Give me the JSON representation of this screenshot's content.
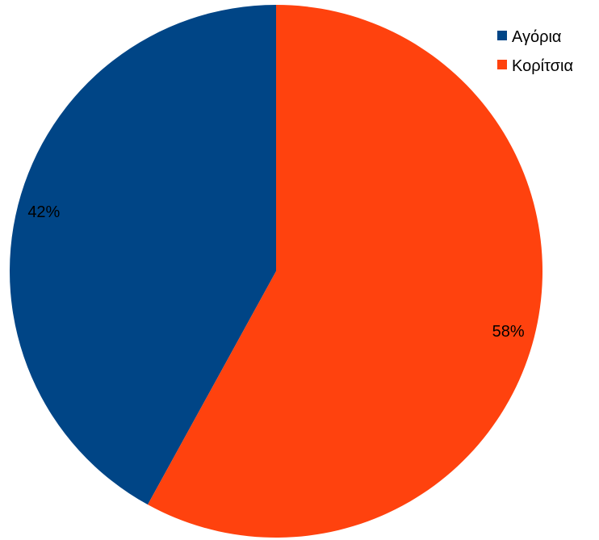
{
  "chart_data": {
    "type": "pie",
    "title": "",
    "categories": [
      "Αγόρια",
      "Κορίτσια"
    ],
    "values": [
      42,
      58
    ],
    "labels": [
      "42%",
      "58%"
    ],
    "colors": [
      "#004586",
      "#ff420e"
    ],
    "start": "12 o'clock",
    "direction": "counter-clockwise",
    "legend": {
      "placement": "top-right",
      "entries": [
        "Αγόρια",
        "Κορίτσια"
      ]
    }
  }
}
